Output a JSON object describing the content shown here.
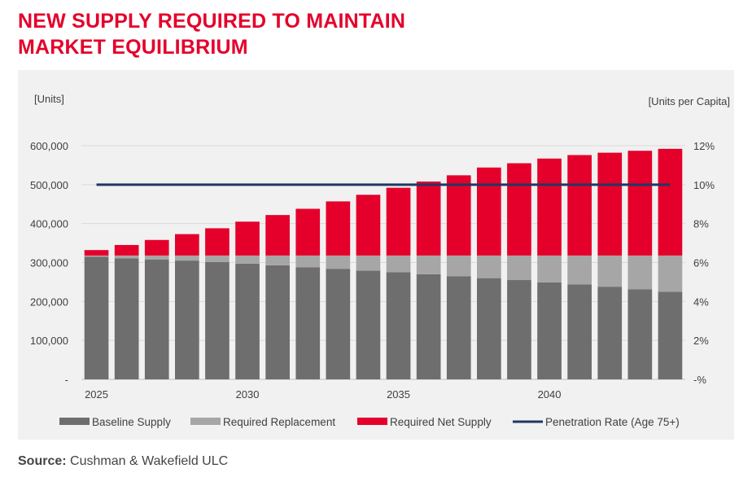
{
  "header": {
    "title_line1": "NEW SUPPLY REQUIRED TO MAINTAIN",
    "title_line2": "MARKET EQUILIBRIUM"
  },
  "footer": {
    "source_label": "Source:",
    "source_text": "Cushman & Wakefield ULC"
  },
  "colors": {
    "title": "#e4002b",
    "baseline": "#6e6e6e",
    "replacement": "#a6a6a6",
    "net_supply": "#e4002b",
    "penetration": "#1f3864",
    "panel_bg": "#f1f1f1"
  },
  "chart_data": {
    "type": "bar",
    "stacked": true,
    "left_axis_label": "[Units]",
    "right_axis_label": "[Units per Capita]",
    "ylim_left": [
      0,
      600000
    ],
    "ylim_right": [
      0,
      12
    ],
    "yticks_left": [
      "-",
      "100,000",
      "200,000",
      "300,000",
      "400,000",
      "500,000",
      "600,000"
    ],
    "yticks_right": [
      "-%",
      "2%",
      "4%",
      "6%",
      "8%",
      "10%",
      "12%"
    ],
    "x_tick_labels": [
      {
        "index": 0,
        "label": "2025"
      },
      {
        "index": 5,
        "label": "2030"
      },
      {
        "index": 10,
        "label": "2035"
      },
      {
        "index": 15,
        "label": "2040"
      }
    ],
    "categories": [
      "2025",
      "2026",
      "2027",
      "2028",
      "2029",
      "2030",
      "2031",
      "2032",
      "2033",
      "2034",
      "2035",
      "2036",
      "2037",
      "2038",
      "2039",
      "2040",
      "2041",
      "2042",
      "2043",
      "2044"
    ],
    "series": [
      {
        "name": "Baseline Supply",
        "color": "#6e6e6e",
        "values": [
          315000,
          311000,
          308000,
          305000,
          301000,
          297000,
          293000,
          288000,
          284000,
          279000,
          275000,
          270000,
          265000,
          260000,
          255000,
          249000,
          244000,
          238000,
          231000,
          225000
        ]
      },
      {
        "name": "Required Replacement",
        "color": "#a6a6a6",
        "values": [
          3000,
          7000,
          10000,
          13000,
          17000,
          21000,
          25000,
          30000,
          34000,
          39000,
          43000,
          48000,
          53000,
          58000,
          63000,
          69000,
          74000,
          80000,
          87000,
          93000
        ]
      },
      {
        "name": "Required Net Supply",
        "color": "#e4002b",
        "values": [
          14000,
          27000,
          40000,
          55000,
          70000,
          87000,
          104000,
          120000,
          139000,
          156000,
          174000,
          190000,
          206000,
          226000,
          237000,
          249000,
          258000,
          264000,
          269000,
          274000
        ]
      }
    ],
    "line_series": {
      "name": "Penetration Rate (Age 75+)",
      "color": "#1f3864",
      "axis": "right",
      "values": [
        10,
        10,
        10,
        10,
        10,
        10,
        10,
        10,
        10,
        10,
        10,
        10,
        10,
        10,
        10,
        10,
        10,
        10,
        10,
        10
      ]
    }
  }
}
